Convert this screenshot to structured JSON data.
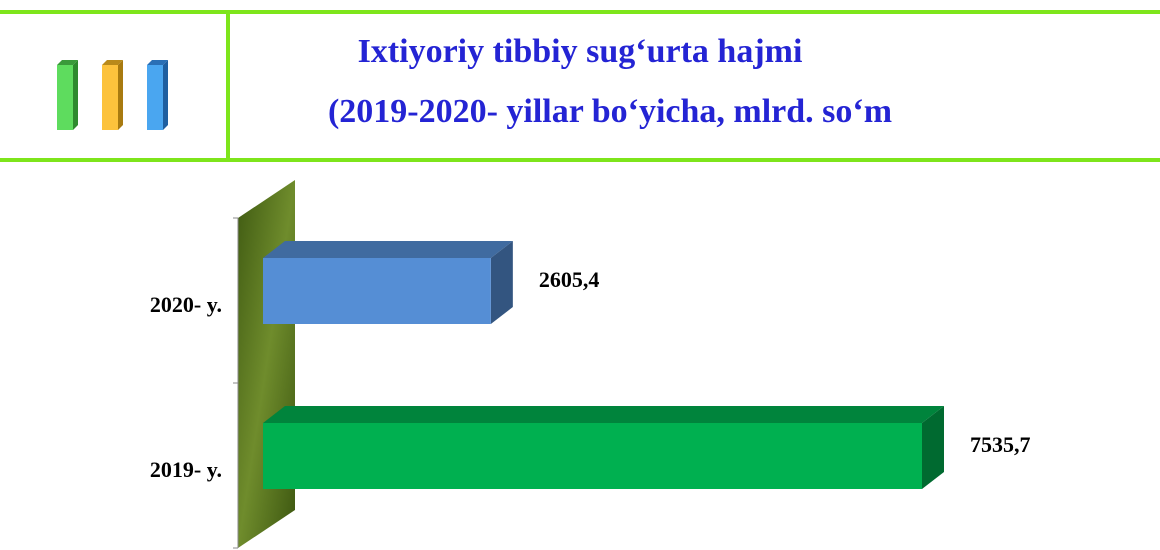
{
  "chart_data": {
    "type": "bar",
    "orientation": "horizontal",
    "title_lines": [
      "Ixtiyoriy tibbiy sug‘urta hajmi",
      "(2019-2020- yillar bo‘yicha, mlrd. so‘m"
    ],
    "categories": [
      "2020- y.",
      "2019- y."
    ],
    "values": [
      2605.4,
      7535.7
    ],
    "value_labels": [
      "2605,4",
      "7535,7"
    ],
    "colors": [
      "#558ed5",
      "#00b050"
    ]
  }
}
